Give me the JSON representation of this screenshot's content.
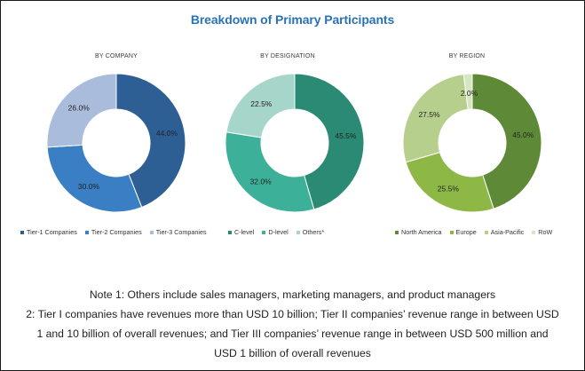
{
  "title": "Breakdown of Primary Participants",
  "chart_data": [
    {
      "type": "pie",
      "title": "BY COMPANY",
      "series": [
        {
          "name": "Tier-1 Companies",
          "value": 44.0,
          "label": "44.0%",
          "color": "#2d5f95"
        },
        {
          "name": "Tier-2 Companies",
          "value": 30.0,
          "label": "30.0%",
          "color": "#3a7ec4"
        },
        {
          "name": "Tier-3 Companies",
          "value": 26.0,
          "label": "26.0%",
          "color": "#a9bcdc"
        }
      ]
    },
    {
      "type": "pie",
      "title": "BY DESIGNATION",
      "series": [
        {
          "name": "C-level",
          "value": 45.5,
          "label": "45.5%",
          "color": "#2a8a73"
        },
        {
          "name": "D-level",
          "value": 32.0,
          "label": "32.0%",
          "color": "#3db09a"
        },
        {
          "name": "Others*",
          "value": 22.5,
          "label": "22.5%",
          "color": "#a6d5c9"
        }
      ]
    },
    {
      "type": "pie",
      "title": "BY REGION",
      "series": [
        {
          "name": "North America",
          "value": 45.0,
          "label": "45.0%",
          "color": "#5e8a37"
        },
        {
          "name": "Europe",
          "value": 25.5,
          "label": "25.5%",
          "color": "#8db846"
        },
        {
          "name": "Asia-Pacific",
          "value": 27.5,
          "label": "27.5%",
          "color": "#b7cf8d"
        },
        {
          "name": "RoW",
          "value": 2.0,
          "label": "2.0%",
          "color": "#d7e6c2"
        }
      ]
    }
  ],
  "notes": [
    "Note 1: Others include sales managers, marketing managers, and product managers",
    "2: Tier I companies have revenues more than USD 10 billion; Tier II companies’ revenue range in between USD",
    "1 and 10 billion of overall revenues; and Tier III companies’ revenue range in between USD 500 million and",
    "USD 1 billion of overall revenues"
  ]
}
